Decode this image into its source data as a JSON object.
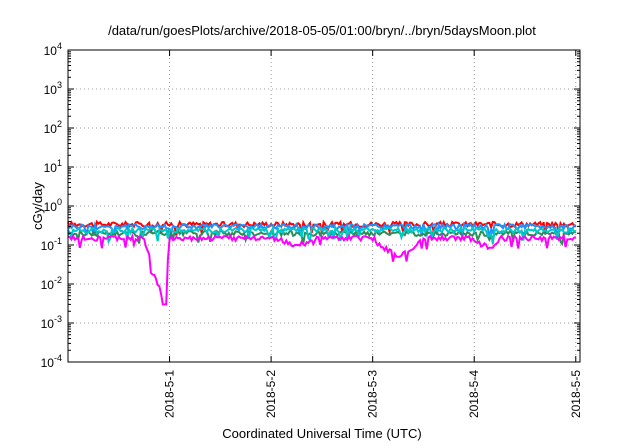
{
  "chart_data": {
    "type": "line",
    "title": "/data/run/goesPlots/archive/2018-05-05/01:00/bryn/../bryn/5daysMoon.plot",
    "xlabel": "Coordinated Universal Time (UTC)",
    "ylabel": "cGy/day",
    "yscale": "log",
    "ylim": [
      0.0001,
      10000
    ],
    "y_ticks": [
      {
        "base": "10",
        "exp": "4",
        "value": 10000
      },
      {
        "base": "10",
        "exp": "3",
        "value": 1000
      },
      {
        "base": "10",
        "exp": "2",
        "value": 100
      },
      {
        "base": "10",
        "exp": "1",
        "value": 10
      },
      {
        "base": "10",
        "exp": "0",
        "value": 1
      },
      {
        "base": "10",
        "exp": "-1",
        "value": 0.1
      },
      {
        "base": "10",
        "exp": "-2",
        "value": 0.01
      },
      {
        "base": "10",
        "exp": "-3",
        "value": 0.001
      },
      {
        "base": "10",
        "exp": "-4",
        "value": 0.0001
      }
    ],
    "xlim": [
      "2018-04-30 00:00",
      "2018-05-05 01:00"
    ],
    "x_ticks": [
      {
        "label": "2018-5-1",
        "value": "2018-05-01"
      },
      {
        "label": "2018-5-2",
        "value": "2018-05-02"
      },
      {
        "label": "2018-5-3",
        "value": "2018-05-03"
      },
      {
        "label": "2018-5-4",
        "value": "2018-05-04"
      },
      {
        "label": "2018-5-5",
        "value": "2018-05-05"
      }
    ],
    "grid": true,
    "series_colors": [
      "#ff0000",
      "#1e90ff",
      "#2e8b57",
      "#00c8c8",
      "#ff00ff"
    ],
    "series": [
      {
        "color": "#ff0000",
        "baseline": 0.34,
        "x_day": [
          0.0,
          0.25,
          0.5,
          0.75,
          0.95,
          1.0,
          1.25,
          1.5,
          1.75,
          2.0,
          2.25,
          2.5,
          2.75,
          3.0,
          3.25,
          3.5,
          3.75,
          4.0,
          4.17,
          4.25,
          4.5,
          4.75,
          5.0
        ],
        "values": [
          0.35,
          0.33,
          0.36,
          0.33,
          0.3,
          0.35,
          0.33,
          0.36,
          0.34,
          0.35,
          0.31,
          0.34,
          0.35,
          0.34,
          0.32,
          0.35,
          0.34,
          0.33,
          0.27,
          0.33,
          0.35,
          0.34,
          0.33
        ]
      },
      {
        "color": "#1e90ff",
        "baseline": 0.3,
        "x_day": [
          0.0,
          0.25,
          0.5,
          0.75,
          0.95,
          1.0,
          1.25,
          1.5,
          1.75,
          2.0,
          2.25,
          2.5,
          2.75,
          3.0,
          3.25,
          3.5,
          3.75,
          4.0,
          4.17,
          4.25,
          4.5,
          4.75,
          5.0
        ],
        "values": [
          0.31,
          0.29,
          0.32,
          0.29,
          0.26,
          0.31,
          0.29,
          0.32,
          0.3,
          0.31,
          0.27,
          0.3,
          0.31,
          0.3,
          0.28,
          0.31,
          0.3,
          0.29,
          0.23,
          0.29,
          0.31,
          0.3,
          0.29
        ]
      },
      {
        "color": "#2e8b57",
        "baseline": 0.2,
        "x_day": [
          0.0,
          0.25,
          0.5,
          0.75,
          0.95,
          1.0,
          1.25,
          1.5,
          1.75,
          2.0,
          2.25,
          2.5,
          2.75,
          3.0,
          3.25,
          3.5,
          3.75,
          4.0,
          4.17,
          4.25,
          4.5,
          4.75,
          5.0
        ],
        "values": [
          0.2,
          0.19,
          0.21,
          0.19,
          0.17,
          0.2,
          0.19,
          0.21,
          0.2,
          0.2,
          0.18,
          0.2,
          0.2,
          0.2,
          0.19,
          0.2,
          0.2,
          0.19,
          0.15,
          0.19,
          0.2,
          0.2,
          0.19
        ]
      },
      {
        "color": "#00c8c8",
        "baseline": 0.24,
        "x_day": [
          0.0,
          0.25,
          0.5,
          0.75,
          0.95,
          1.0,
          1.25,
          1.5,
          1.75,
          2.0,
          2.25,
          2.5,
          2.75,
          3.0,
          3.25,
          3.5,
          3.75,
          4.0,
          4.17,
          4.25,
          4.5,
          4.75,
          5.0
        ],
        "values": [
          0.24,
          0.23,
          0.25,
          0.23,
          0.2,
          0.24,
          0.23,
          0.25,
          0.24,
          0.24,
          0.21,
          0.24,
          0.24,
          0.24,
          0.22,
          0.24,
          0.24,
          0.23,
          0.18,
          0.23,
          0.24,
          0.24,
          0.23
        ]
      },
      {
        "color": "#ff00ff",
        "baseline": 0.15,
        "x_day": [
          0.0,
          0.25,
          0.5,
          0.75,
          0.95,
          1.0,
          1.25,
          1.5,
          1.75,
          2.0,
          2.25,
          2.5,
          2.75,
          3.0,
          3.25,
          3.5,
          3.75,
          4.0,
          4.17,
          4.25,
          4.5,
          4.75,
          5.0
        ],
        "values": [
          0.14,
          0.12,
          0.15,
          0.13,
          0.003,
          0.14,
          0.12,
          0.15,
          0.13,
          0.14,
          0.1,
          0.13,
          0.14,
          0.13,
          0.05,
          0.14,
          0.13,
          0.12,
          0.085,
          0.12,
          0.14,
          0.13,
          0.12
        ]
      }
    ]
  }
}
